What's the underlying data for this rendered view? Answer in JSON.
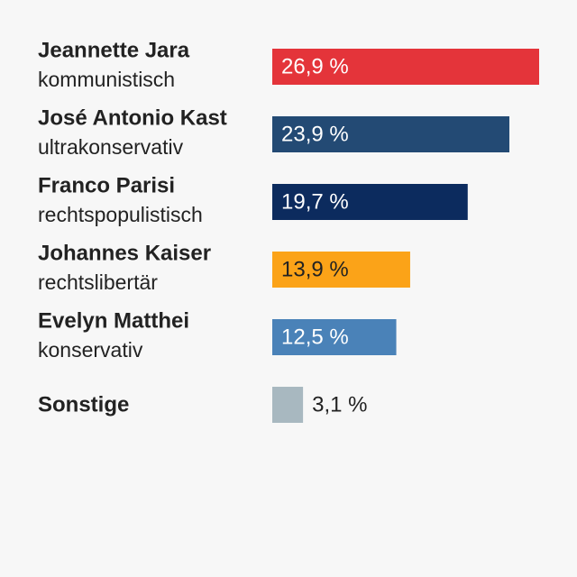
{
  "chart_data": {
    "type": "bar",
    "orientation": "horizontal",
    "categories": [
      "Jeannette Jara",
      "José Antonio Kast",
      "Franco Parisi",
      "Johannes Kaiser",
      "Evelyn Matthei",
      "Sonstige"
    ],
    "subcategories": [
      "kommunistisch",
      "ultrakonservativ",
      "rechtspopulistisch",
      "rechtslibertär",
      "konservativ",
      null
    ],
    "values": [
      26.9,
      23.9,
      19.7,
      13.9,
      12.5,
      3.1
    ],
    "value_labels": [
      "26,9 %",
      "23,9 %",
      "19,7 %",
      "13,9 %",
      "12,5 %",
      "3,1 %"
    ],
    "colors": [
      "#e4343a",
      "#234a74",
      "#0c2b5e",
      "#fba318",
      "#4a82b8",
      "#a8b8c0"
    ]
  }
}
